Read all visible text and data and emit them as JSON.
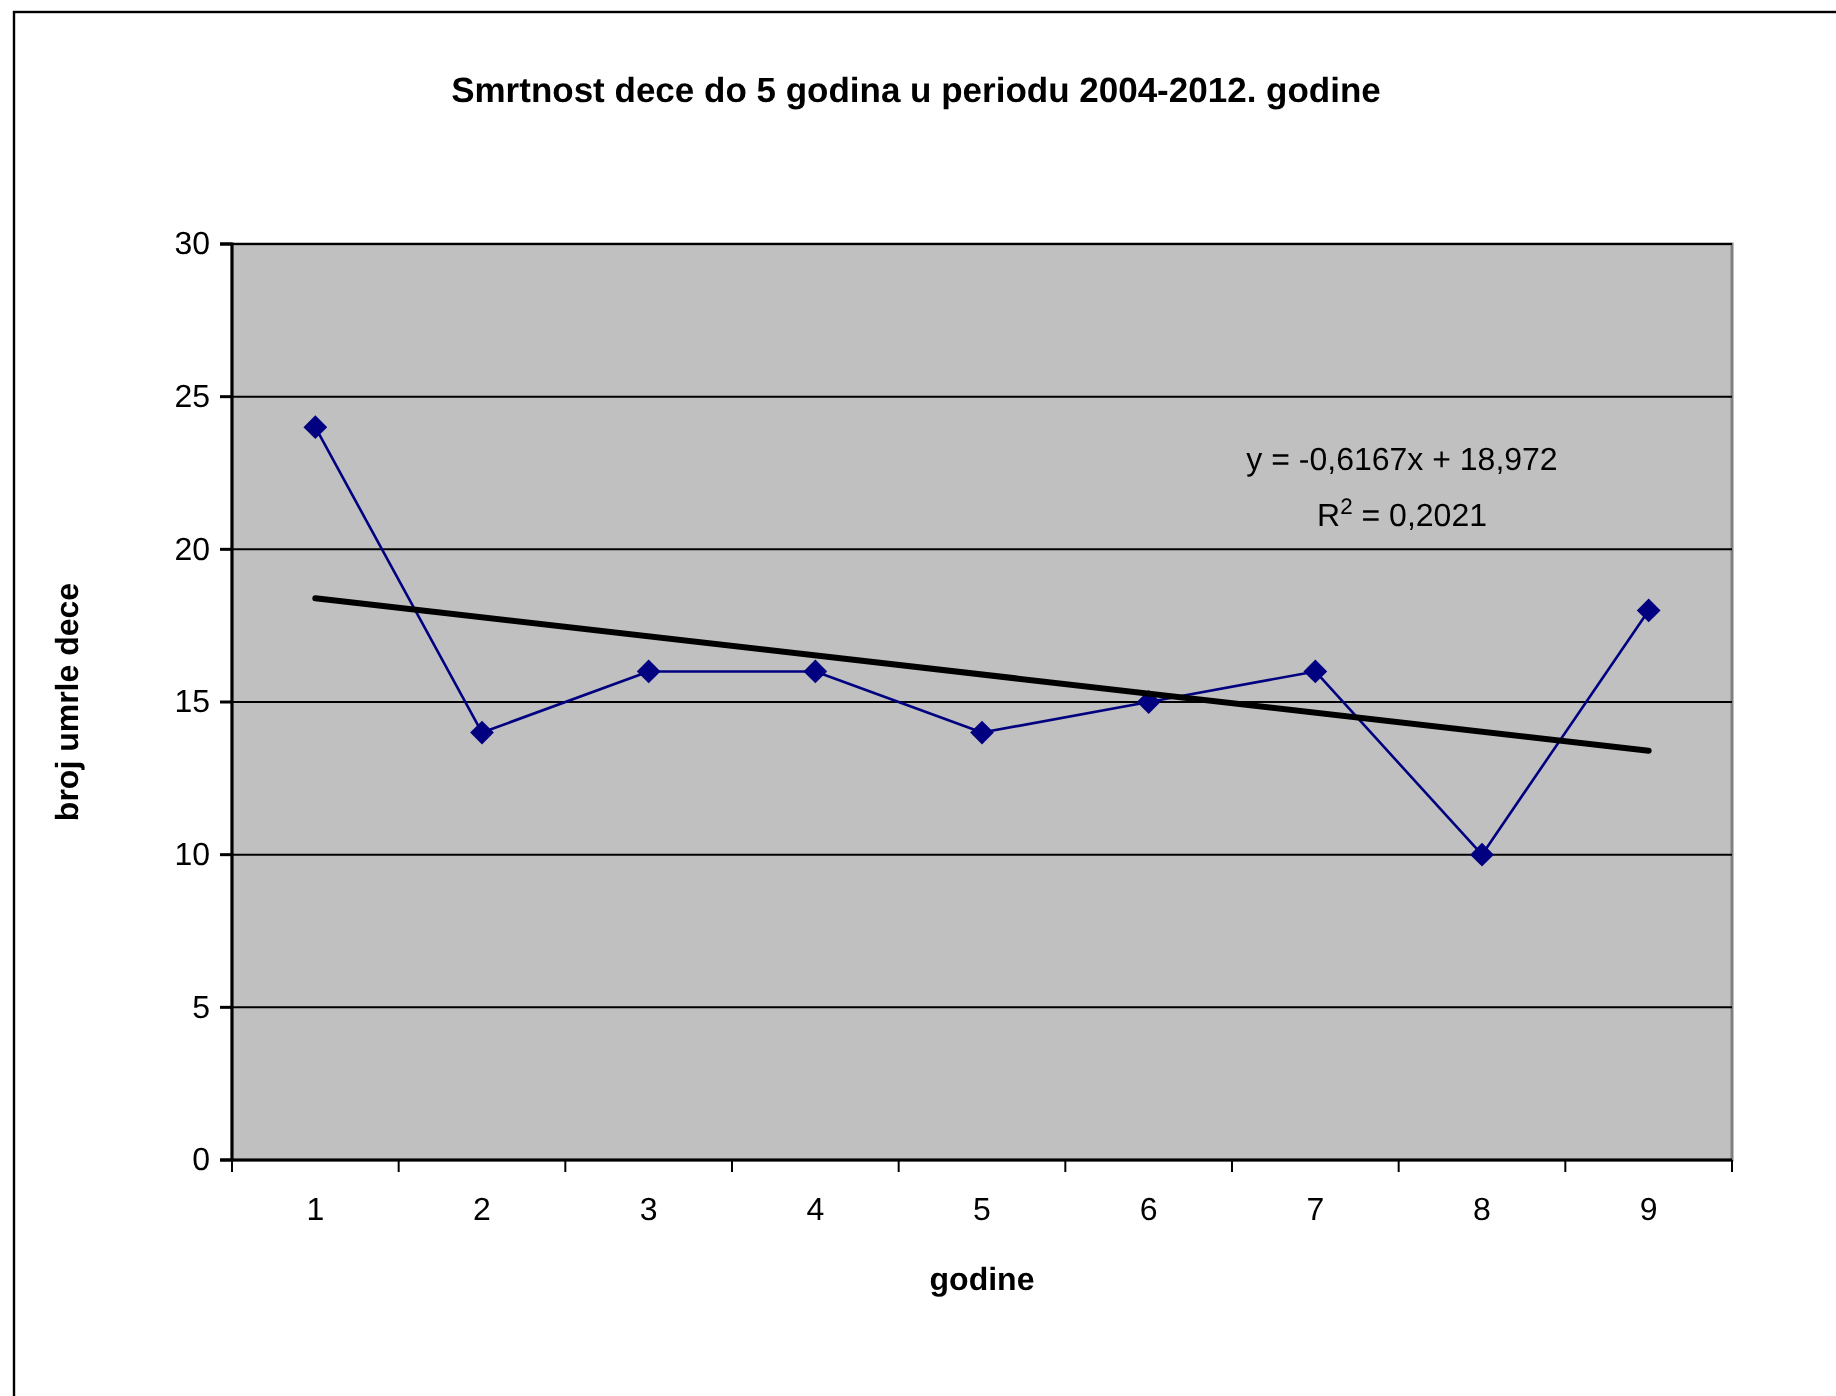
{
  "chart_data": {
    "type": "line",
    "title": "Smrtnost dece do 5 godina u periodu 2004-2012. godine",
    "xlabel": "godine",
    "ylabel": "broj umrle dece",
    "categories": [
      "1",
      "2",
      "3",
      "4",
      "5",
      "6",
      "7",
      "8",
      "9"
    ],
    "series": [
      {
        "color": "#000080",
        "values": [
          24,
          14,
          16,
          16,
          14,
          15,
          16,
          10,
          18
        ],
        "marker": "diamond"
      },
      {
        "type": "line",
        "color": "#000000",
        "x": [
          "1",
          "9"
        ],
        "values": [
          18.4,
          13.4
        ],
        "marker": "none"
      }
    ],
    "ylim": [
      0,
      30
    ],
    "yticks": [
      0,
      5,
      10,
      15,
      20,
      25,
      30
    ],
    "grid": "y",
    "annotations": [
      "y = -0,6167x + 18,972",
      "R$^{2}$ = 0,2021"
    ]
  }
}
